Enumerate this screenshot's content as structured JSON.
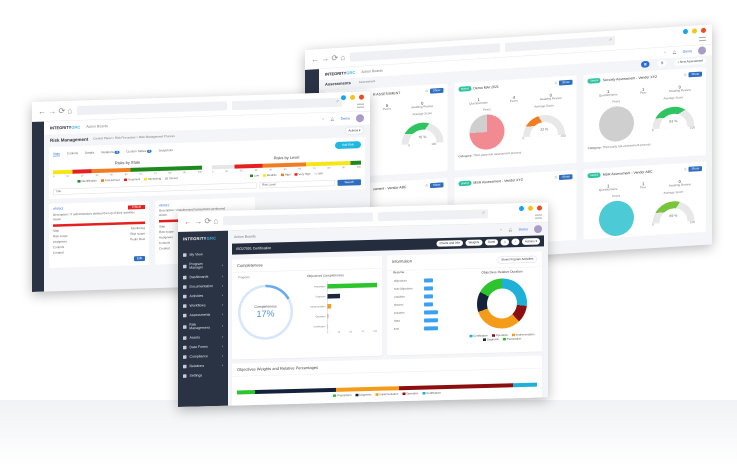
{
  "browser": {
    "dots": [
      "#1aa3f5",
      "#f5c41a",
      "#ee4a1e"
    ]
  },
  "brand": {
    "logo_text": "INTEGRITY",
    "logo_accent": "GRC"
  },
  "common": {
    "breadcrumb": "Action Boards",
    "user": "Demo",
    "actions": "Actions ▾"
  },
  "back": {
    "tabs": [
      "Assessments",
      "Assessment"
    ],
    "new_button": "+ New Assessment",
    "cards": [
      {
        "title": "R ASSESSMENT",
        "tag": "",
        "stats": [
          {
            "v": "5",
            "l": "Peers"
          },
          {
            "v": "0",
            "l": "Awaiting Review"
          }
        ],
        "avg_label": "Average Score",
        "score": 70,
        "score_text": "70 %",
        "gauge_color": "#2ec45f",
        "pie": null,
        "category": "process"
      },
      {
        "title": "Demo MAr 2021",
        "tag": "Started",
        "stats": [
          {
            "v": "1",
            "l": "Questionnaire"
          },
          {
            "v": "4",
            "l": "Peers"
          },
          {
            "v": "0",
            "l": "Awaiting Review"
          }
        ],
        "peers_label": "Peers",
        "avg_label": "Average Score",
        "score": 33,
        "score_text": "33 %",
        "gauge_color": "#f07d22",
        "pie": {
          "color": "#f28a92",
          "rest": "#cfcfcf",
          "share": 75
        },
        "category_label": "Category:",
        "category": "Third-party risk assessment process"
      },
      {
        "title": "Security Assessment - Vendor XYZ",
        "tag": "Started",
        "stats": [
          {
            "v": "1",
            "l": "Questionnaire"
          },
          {
            "v": "1",
            "l": "Peer"
          },
          {
            "v": "0",
            "l": "Awaiting Review"
          }
        ],
        "peers_label": "Peers",
        "avg_label": "Average Score",
        "score": 83,
        "score_text": "83 %",
        "gauge_color": "#2ec45f",
        "pie": {
          "color": "#cfcfcf",
          "rest": "#cfcfcf",
          "share": 100
        },
        "category_label": "Category:",
        "category": "Third-party risk assessment process"
      },
      {
        "title": "ssment - Vendor ABC",
        "tag": "",
        "stats": [],
        "score": 0
      },
      {
        "title": "MSR Assessment - Vendor XYZ",
        "tag": "Started",
        "stats": [],
        "score": 0
      },
      {
        "title": "MSR Assessment - Vendor ABC",
        "tag": "Started",
        "stats": [
          {
            "v": "1",
            "l": "Questionnaire"
          },
          {
            "v": "1",
            "l": "Peer"
          },
          {
            "v": "0",
            "l": "Awaiting Review"
          }
        ],
        "peers_label": "Peers",
        "avg_label": "Average Score",
        "score": 69,
        "score_text": "69 %",
        "gauge_color": "#78c43a",
        "pie": {
          "color": "#4ccad6",
          "rest": "#4ccad6",
          "share": 100
        }
      }
    ],
    "show": "Show",
    "gauge_min": "0",
    "gauge_max": "100"
  },
  "middle": {
    "title": "Risk Management",
    "breadcrumb": "Control Panel > Risk Processes > Risk Management Process",
    "tabs": [
      {
        "label": "State"
      },
      {
        "label": "Controls"
      },
      {
        "label": "Details"
      },
      {
        "label": "Relations",
        "badge": "3"
      },
      {
        "label": "Custom Tables",
        "badge": "3"
      },
      {
        "label": "Snapshots"
      }
    ],
    "add_risk": "Add Risk",
    "charts": [
      {
        "title": "Risks by State",
        "segments": [
          {
            "name": "Monitoring",
            "color": "#f5e61a",
            "value": 13
          },
          {
            "name": "Treatment",
            "color": "#e52020",
            "value": 13
          },
          {
            "name": "Assessment",
            "color": "#f07d22",
            "value": 26
          },
          {
            "name": "Identification",
            "color": "#1d8a1d",
            "value": 48
          }
        ],
        "legend": [
          {
            "name": "Identification",
            "color": "#1d8a1d"
          },
          {
            "name": "Assessment",
            "color": "#f07d22"
          },
          {
            "name": "Treatment",
            "color": "#e52020"
          },
          {
            "name": "Monitoring",
            "color": "#f5e61a"
          },
          {
            "name": "Closed",
            "color": "#cccccc"
          }
        ]
      },
      {
        "title": "Risks by Level",
        "segments": [
          {
            "name": "N/A",
            "color": "#e6e6e6",
            "value": 15
          },
          {
            "name": "Very High",
            "color": "#e52020",
            "value": 19
          },
          {
            "name": "High",
            "color": "#f07d22",
            "value": 29
          },
          {
            "name": "Medium",
            "color": "#f5e61a",
            "value": 30
          },
          {
            "name": "Low",
            "color": "#1d8a1d",
            "value": 7
          }
        ],
        "legend": [
          {
            "name": "Low",
            "color": "#1d8a1d"
          },
          {
            "name": "Medium",
            "color": "#f5e61a"
          },
          {
            "name": "High",
            "color": "#f07d22"
          },
          {
            "name": "Very High",
            "color": "#e52020"
          },
          {
            "name": "N/A",
            "color": "#e6e6e6"
          }
        ]
      }
    ],
    "ticks": [
      "0",
      "10",
      "20",
      "30",
      "40",
      "50",
      "60",
      "70",
      "80",
      "90",
      "100"
    ],
    "filter_placeholder": "Title",
    "level_select": "Risk Level",
    "search": "Search",
    "risks": [
      {
        "id": "#RISK3",
        "badge": "Critical",
        "desc_label": "Description:",
        "desc": "IT administrators deleted the log of their activities",
        "asset_label": "Asset:",
        "fields": [
          {
            "l": "Step",
            "v": "Monitoring"
          },
          {
            "l": "Risk scope",
            "v": "Risk scope"
          },
          {
            "l": "Assignees",
            "v": "Pedro Ruiz"
          },
          {
            "l": "Controls",
            "v": ""
          },
          {
            "l": "Created",
            "v": ""
          }
        ]
      },
      {
        "id": "#RISK2",
        "badge": "",
        "desc_label": "Description:",
        "desc": "Unauthorized transactions performed",
        "asset_label": "Asset:",
        "fields": [
          {
            "l": "Step",
            "v": ""
          },
          {
            "l": "Risk scope",
            "v": ""
          },
          {
            "l": "Assignees",
            "v": ""
          },
          {
            "l": "Controls",
            "v": ""
          },
          {
            "l": "Created",
            "v": ""
          }
        ]
      }
    ],
    "edit": "Edit"
  },
  "front": {
    "sidebar": [
      "My View",
      "Program Manager",
      "Dashboards",
      "Documentation",
      "Activities",
      "Workflows",
      "Assessments",
      "Risk Management",
      "Assets",
      "Data Forms",
      "Compliance",
      "Relations",
      "Settings"
    ],
    "title": "ISO27001 Certification",
    "buttons": [
      "Charts and Info",
      "Weights",
      "Gantt"
    ],
    "completeness": {
      "title": "Completeness",
      "program": "Program",
      "label": "Completeness",
      "value": 17,
      "value_text": "17%",
      "bars_title": "Objectives Completeness",
      "bars": [
        {
          "name": "Preparation",
          "value": 100,
          "color": "#2ec42e"
        },
        {
          "name": "Diagnosis",
          "value": 25,
          "color": "#1a2840"
        },
        {
          "name": "Implementation",
          "value": 7,
          "color": "#f59b1a"
        },
        {
          "name": "Operation",
          "value": 2,
          "color": "#f2a0a0"
        },
        {
          "name": "Certification",
          "value": 1,
          "color": "#a8dcf5"
        }
      ],
      "axis": [
        "0",
        "25",
        "50",
        "75",
        "100"
      ]
    },
    "information": {
      "title": "Information",
      "show_activities": "Show Program Activities",
      "resume": "Resume",
      "items": [
        "Objectives",
        "Sub-Objectives",
        "Activities",
        "Owners",
        "Duration",
        "Start",
        "End"
      ],
      "donut_title": "Objectives Relative Duration",
      "donut": [
        {
          "name": "Certification",
          "value": 27,
          "color": "#1fb0d8"
        },
        {
          "name": "Operation",
          "value": 11,
          "color": "#8b0f0f"
        },
        {
          "name": "Implementation",
          "value": 32,
          "color": "#f59b1a"
        },
        {
          "name": "Diagnosis",
          "value": 13,
          "color": "#14233b"
        },
        {
          "name": "Preparation",
          "value": 17,
          "color": "#2ec42e"
        }
      ]
    },
    "weights": {
      "title": "Objectives Weights and Relative Percentages",
      "bar": [
        {
          "name": "Preparation",
          "value": 6,
          "color": "#2ec42e"
        },
        {
          "name": "Diagnosis",
          "value": 27,
          "color": "#14233b"
        },
        {
          "name": "Implementation",
          "value": 21,
          "color": "#f59b1a"
        },
        {
          "name": "Operation",
          "value": 38,
          "color": "#8b0f0f"
        },
        {
          "name": "Certification",
          "value": 8,
          "color": "#1fb0d8"
        }
      ]
    }
  }
}
